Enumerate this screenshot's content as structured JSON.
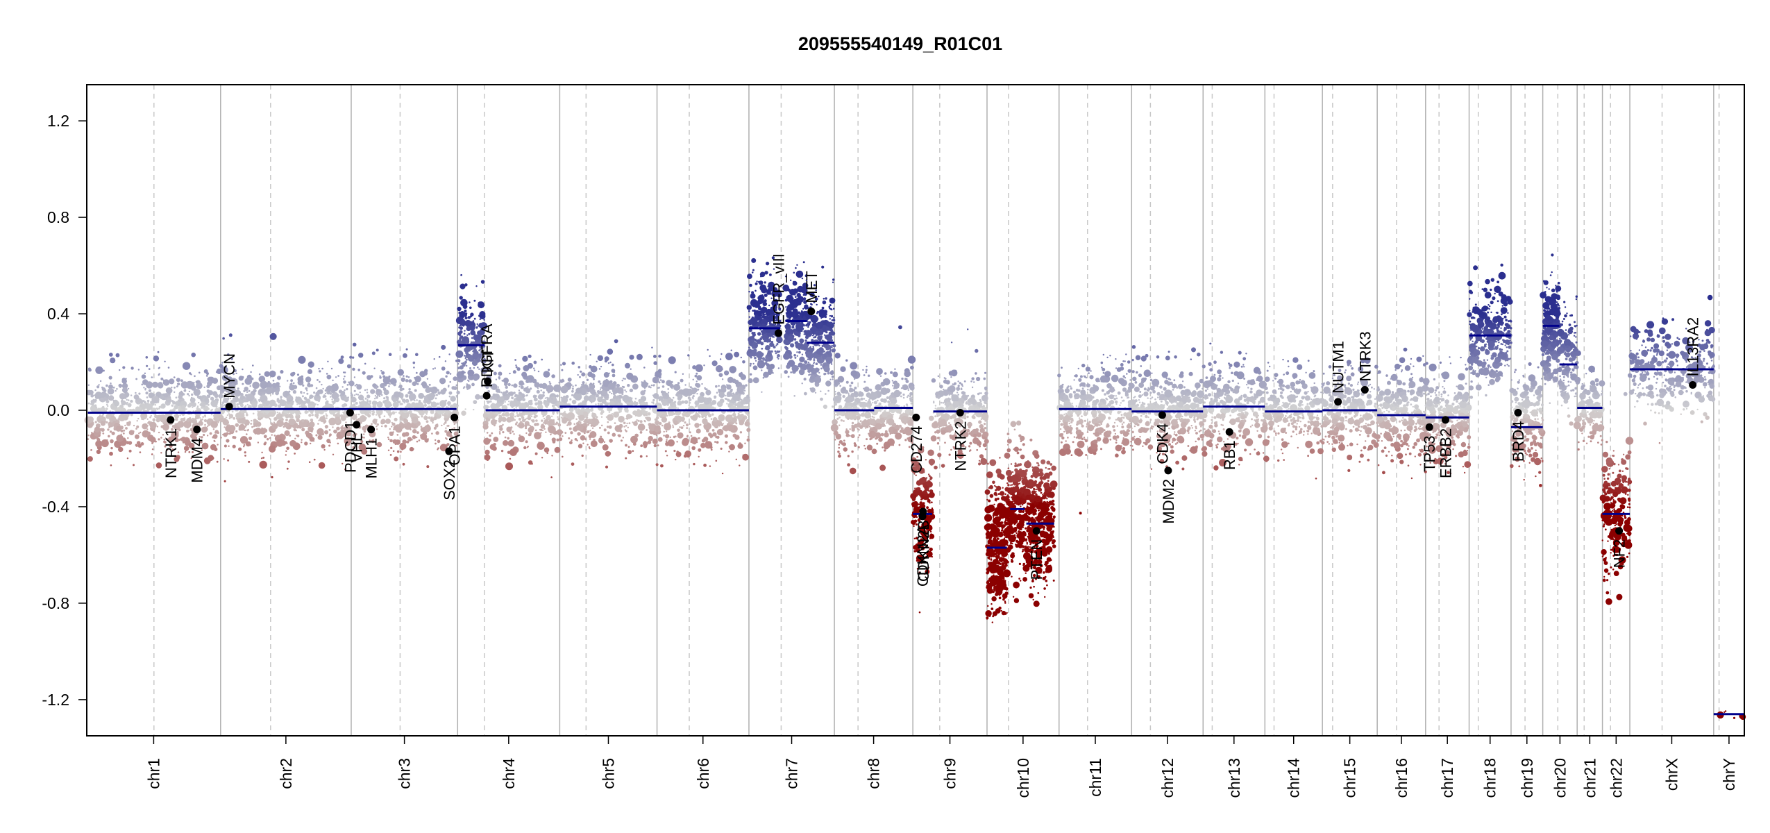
{
  "chart_data": {
    "type": "scatter",
    "title": "209555540149_R01C01",
    "xlabel": "",
    "ylabel": "",
    "ylim": [
      -1.35,
      1.35
    ],
    "yticks": [
      1.2,
      0.8,
      0.4,
      0.0,
      -0.4,
      -0.8,
      -1.2
    ],
    "ytick_labels": [
      "1.2",
      "0.8",
      "0.4",
      "0.0",
      "-0.4",
      "-0.8",
      "-1.2"
    ],
    "grid": false,
    "colors": {
      "gain": "#2b2f8f",
      "loss": "#8b0000",
      "neutral": "#d3d3d3",
      "segment": "#00008b",
      "gene_point": "#000000",
      "chrom_border": "#b0b0b0",
      "centromere": "#c8c8c8"
    },
    "chromosomes": [
      {
        "name": "chr1",
        "start": 0,
        "end": 249,
        "centromere": 125
      },
      {
        "name": "chr2",
        "start": 249,
        "end": 492,
        "centromere": 342
      },
      {
        "name": "chr3",
        "start": 492,
        "end": 690,
        "centromere": 583
      },
      {
        "name": "chr4",
        "start": 690,
        "end": 880,
        "centromere": 740
      },
      {
        "name": "chr5",
        "start": 880,
        "end": 1061,
        "centromere": 929
      },
      {
        "name": "chr6",
        "start": 1061,
        "end": 1232,
        "centromere": 1121
      },
      {
        "name": "chr7",
        "start": 1232,
        "end": 1391,
        "centromere": 1292
      },
      {
        "name": "chr8",
        "start": 1391,
        "end": 1537,
        "centromere": 1435
      },
      {
        "name": "chr9",
        "start": 1537,
        "end": 1675,
        "centromere": 1587
      },
      {
        "name": "chr10",
        "start": 1675,
        "end": 1809,
        "centromere": 1715
      },
      {
        "name": "chr11",
        "start": 1809,
        "end": 1944,
        "centromere": 1862
      },
      {
        "name": "chr12",
        "start": 1944,
        "end": 2077,
        "centromere": 1979
      },
      {
        "name": "chr13",
        "start": 2077,
        "end": 2192,
        "centromere": 2094
      },
      {
        "name": "chr14",
        "start": 2192,
        "end": 2299,
        "centromere": 2209
      },
      {
        "name": "chr15",
        "start": 2299,
        "end": 2401,
        "centromere": 2318
      },
      {
        "name": "chr16",
        "start": 2401,
        "end": 2491,
        "centromere": 2437
      },
      {
        "name": "chr17",
        "start": 2491,
        "end": 2572,
        "centromere": 2516
      },
      {
        "name": "chr18",
        "start": 2572,
        "end": 2650,
        "centromere": 2589
      },
      {
        "name": "chr19",
        "start": 2650,
        "end": 2709,
        "centromere": 2676
      },
      {
        "name": "chr20",
        "start": 2709,
        "end": 2773,
        "centromere": 2737
      },
      {
        "name": "chr21",
        "start": 2773,
        "end": 2820,
        "centromere": 2786
      },
      {
        "name": "chr22",
        "start": 2820,
        "end": 2871,
        "centromere": 2835
      },
      {
        "name": "chrX",
        "start": 2871,
        "end": 3027,
        "centromere": 2931
      },
      {
        "name": "chrY",
        "start": 3027,
        "end": 3084,
        "centromere": 3037
      }
    ],
    "segments": [
      {
        "x0": 2,
        "x1": 249,
        "y": -0.01
      },
      {
        "x0": 249,
        "x1": 492,
        "y": 0.005
      },
      {
        "x0": 492,
        "x1": 688,
        "y": 0.005
      },
      {
        "x0": 691,
        "x1": 740,
        "y": 0.27
      },
      {
        "x0": 742,
        "x1": 880,
        "y": 0.0
      },
      {
        "x0": 880,
        "x1": 1061,
        "y": 0.015
      },
      {
        "x0": 1061,
        "x1": 1232,
        "y": 0.0
      },
      {
        "x0": 1232,
        "x1": 1290,
        "y": 0.34
      },
      {
        "x0": 1300,
        "x1": 1340,
        "y": 0.37
      },
      {
        "x0": 1340,
        "x1": 1391,
        "y": 0.28
      },
      {
        "x0": 1391,
        "x1": 1465,
        "y": 0.0
      },
      {
        "x0": 1465,
        "x1": 1537,
        "y": 0.01
      },
      {
        "x0": 1537,
        "x1": 1573,
        "y": -0.43
      },
      {
        "x0": 1575,
        "x1": 1675,
        "y": -0.005
      },
      {
        "x0": 1675,
        "x1": 1712,
        "y": -0.57
      },
      {
        "x0": 1718,
        "x1": 1745,
        "y": -0.41
      },
      {
        "x0": 1748,
        "x1": 1800,
        "y": -0.47
      },
      {
        "x0": 1809,
        "x1": 1944,
        "y": 0.005
      },
      {
        "x0": 1944,
        "x1": 2077,
        "y": -0.005
      },
      {
        "x0": 2077,
        "x1": 2192,
        "y": 0.015
      },
      {
        "x0": 2192,
        "x1": 2299,
        "y": -0.005
      },
      {
        "x0": 2299,
        "x1": 2401,
        "y": 0.0
      },
      {
        "x0": 2401,
        "x1": 2491,
        "y": -0.02
      },
      {
        "x0": 2491,
        "x1": 2572,
        "y": -0.03
      },
      {
        "x0": 2572,
        "x1": 2650,
        "y": 0.31
      },
      {
        "x0": 2650,
        "x1": 2709,
        "y": -0.07
      },
      {
        "x0": 2709,
        "x1": 2740,
        "y": 0.35
      },
      {
        "x0": 2740,
        "x1": 2773,
        "y": 0.19
      },
      {
        "x0": 2773,
        "x1": 2820,
        "y": 0.01
      },
      {
        "x0": 2820,
        "x1": 2871,
        "y": -0.43
      },
      {
        "x0": 2871,
        "x1": 3027,
        "y": 0.17
      },
      {
        "x0": 3027,
        "x1": 3084,
        "y": -1.26
      }
    ],
    "genes": [
      {
        "name": "NTRK1",
        "x": 156,
        "y": -0.04
      },
      {
        "name": "MDM4",
        "x": 205,
        "y": -0.08
      },
      {
        "name": "MYCN",
        "x": 265,
        "y": 0.015
      },
      {
        "name": "PDCD1",
        "x": 490,
        "y": -0.01
      },
      {
        "name": "VHL",
        "x": 502,
        "y": -0.06
      },
      {
        "name": "MLH1",
        "x": 529,
        "y": -0.08
      },
      {
        "name": "SOX2",
        "x": 674,
        "y": -0.17
      },
      {
        "name": "OPA1",
        "x": 684,
        "y": -0.03
      },
      {
        "name": "PDGFRA",
        "x": 744,
        "y": 0.06
      },
      {
        "name": "KIT",
        "x": 746,
        "y": 0.12
      },
      {
        "name": "EGFR_vIII",
        "x": 1287,
        "y": 0.32
      },
      {
        "name": "MET",
        "x": 1348,
        "y": 0.41
      },
      {
        "name": "CD274",
        "x": 1543,
        "y": -0.03
      },
      {
        "name": "CDKN2A",
        "x": 1555,
        "y": -0.44
      },
      {
        "name": "CDKN2B",
        "x": 1556,
        "y": -0.42
      },
      {
        "name": "NTRK2",
        "x": 1625,
        "y": -0.01
      },
      {
        "name": "PTEN",
        "x": 1767,
        "y": -0.5
      },
      {
        "name": "CDK4",
        "x": 2001,
        "y": -0.02
      },
      {
        "name": "MDM2",
        "x": 2012,
        "y": -0.25
      },
      {
        "name": "RB1",
        "x": 2126,
        "y": -0.09
      },
      {
        "name": "NUTM1",
        "x": 2328,
        "y": 0.035
      },
      {
        "name": "NTRK3",
        "x": 2378,
        "y": 0.085
      },
      {
        "name": "TP53",
        "x": 2498,
        "y": -0.07
      },
      {
        "name": "ERBB2",
        "x": 2528,
        "y": -0.04
      },
      {
        "name": "BRD4",
        "x": 2663,
        "y": -0.01
      },
      {
        "name": "NF2",
        "x": 2851,
        "y": -0.5
      },
      {
        "name": "IL13RA2",
        "x": 2988,
        "y": 0.105
      }
    ],
    "point_clouds": [
      {
        "x0": 2,
        "x1": 249,
        "mean": -0.01,
        "sd": 0.09,
        "n": 700
      },
      {
        "x0": 249,
        "x1": 492,
        "mean": 0.005,
        "sd": 0.09,
        "n": 700
      },
      {
        "x0": 492,
        "x1": 690,
        "mean": 0.005,
        "sd": 0.09,
        "n": 560
      },
      {
        "x0": 691,
        "x1": 740,
        "mean": 0.27,
        "sd": 0.1,
        "n": 220
      },
      {
        "x0": 742,
        "x1": 880,
        "mean": 0.0,
        "sd": 0.09,
        "n": 420
      },
      {
        "x0": 880,
        "x1": 1061,
        "mean": 0.015,
        "sd": 0.09,
        "n": 520
      },
      {
        "x0": 1061,
        "x1": 1232,
        "mean": 0.0,
        "sd": 0.09,
        "n": 500
      },
      {
        "x0": 1232,
        "x1": 1290,
        "mean": 0.34,
        "sd": 0.1,
        "n": 320
      },
      {
        "x0": 1300,
        "x1": 1340,
        "mean": 0.36,
        "sd": 0.1,
        "n": 220
      },
      {
        "x0": 1340,
        "x1": 1391,
        "mean": 0.28,
        "sd": 0.1,
        "n": 260
      },
      {
        "x0": 1391,
        "x1": 1537,
        "mean": 0.0,
        "sd": 0.09,
        "n": 440
      },
      {
        "x0": 1537,
        "x1": 1573,
        "mean": -0.43,
        "sd": 0.12,
        "n": 200
      },
      {
        "x0": 1575,
        "x1": 1675,
        "mean": -0.005,
        "sd": 0.09,
        "n": 300
      },
      {
        "x0": 1675,
        "x1": 1712,
        "mean": -0.57,
        "sd": 0.13,
        "n": 360
      },
      {
        "x0": 1712,
        "x1": 1748,
        "mean": -0.42,
        "sd": 0.13,
        "n": 300
      },
      {
        "x0": 1748,
        "x1": 1800,
        "mean": -0.47,
        "sd": 0.13,
        "n": 420
      },
      {
        "x0": 1809,
        "x1": 1944,
        "mean": 0.005,
        "sd": 0.09,
        "n": 440
      },
      {
        "x0": 1944,
        "x1": 2077,
        "mean": -0.005,
        "sd": 0.09,
        "n": 420
      },
      {
        "x0": 2077,
        "x1": 2192,
        "mean": 0.015,
        "sd": 0.09,
        "n": 300
      },
      {
        "x0": 2192,
        "x1": 2299,
        "mean": -0.005,
        "sd": 0.09,
        "n": 280
      },
      {
        "x0": 2299,
        "x1": 2401,
        "mean": 0.0,
        "sd": 0.09,
        "n": 290
      },
      {
        "x0": 2401,
        "x1": 2491,
        "mean": -0.02,
        "sd": 0.09,
        "n": 280
      },
      {
        "x0": 2491,
        "x1": 2572,
        "mean": -0.03,
        "sd": 0.09,
        "n": 300
      },
      {
        "x0": 2572,
        "x1": 2650,
        "mean": 0.31,
        "sd": 0.1,
        "n": 320
      },
      {
        "x0": 2650,
        "x1": 2709,
        "mean": -0.05,
        "sd": 0.09,
        "n": 220
      },
      {
        "x0": 2709,
        "x1": 2740,
        "mean": 0.33,
        "sd": 0.1,
        "n": 200
      },
      {
        "x0": 2740,
        "x1": 2773,
        "mean": 0.21,
        "sd": 0.1,
        "n": 150
      },
      {
        "x0": 2773,
        "x1": 2820,
        "mean": 0.01,
        "sd": 0.09,
        "n": 130
      },
      {
        "x0": 2820,
        "x1": 2871,
        "mean": -0.43,
        "sd": 0.13,
        "n": 240
      },
      {
        "x0": 2871,
        "x1": 3027,
        "mean": 0.17,
        "sd": 0.09,
        "n": 380
      },
      {
        "x0": 3027,
        "x1": 3084,
        "mean": -1.26,
        "sd": 0.01,
        "n": 6
      }
    ]
  }
}
